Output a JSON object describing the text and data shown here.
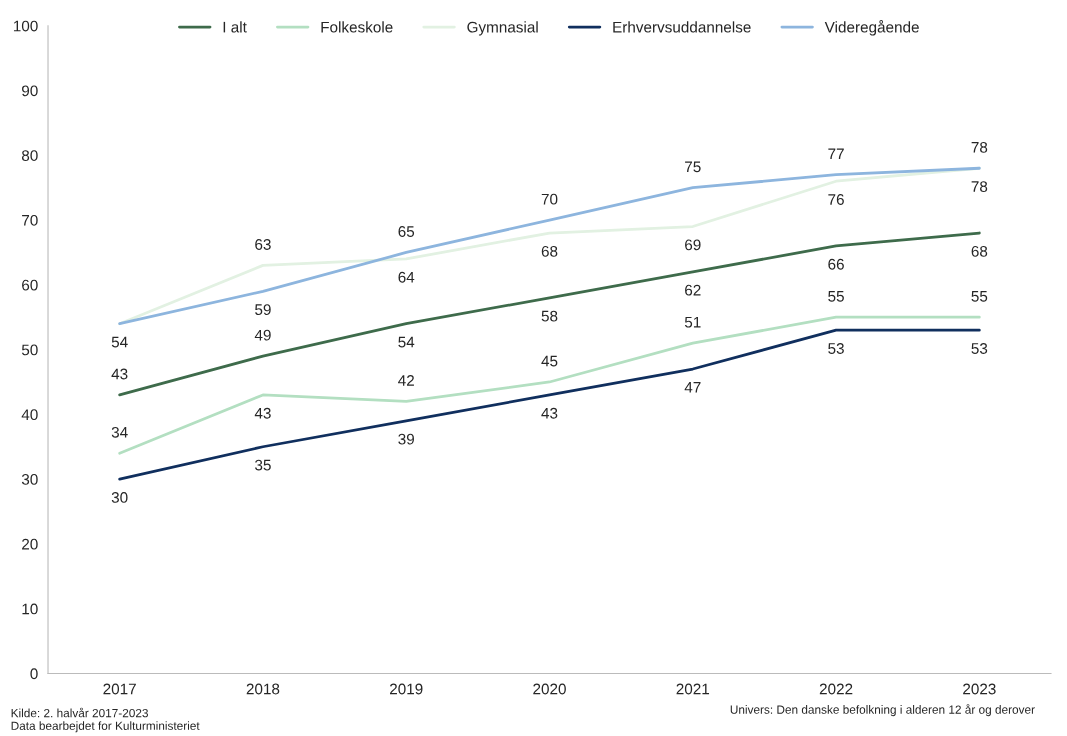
{
  "chart_data": {
    "type": "line",
    "categories": [
      "2017",
      "2018",
      "2019",
      "2020",
      "2021",
      "2022",
      "2023"
    ],
    "series": [
      {
        "name": "I alt",
        "color": "#3e6b4b",
        "values": [
          43,
          49,
          54,
          58,
          62,
          66,
          68
        ],
        "value_labels": [
          "43",
          "49",
          "54",
          "58",
          "62",
          "66",
          "68"
        ]
      },
      {
        "name": "Folkeskole",
        "color": "#b3dfc1",
        "values": [
          34,
          43,
          42,
          45,
          51,
          55,
          55
        ],
        "value_labels": [
          "34",
          "43",
          "42",
          "45",
          "51",
          "55",
          "55"
        ]
      },
      {
        "name": "Gymnasial",
        "color": "#e2f1e2",
        "values": [
          54,
          63,
          64,
          68,
          69,
          76,
          78
        ],
        "value_labels": [
          null,
          "63",
          "64",
          "68",
          "69",
          "76",
          "78"
        ]
      },
      {
        "name": "Erhvervsuddannelse",
        "color": "#102f5e",
        "values": [
          30,
          35,
          39,
          43,
          47,
          53,
          53
        ],
        "value_labels": [
          "30",
          "35",
          "39",
          "43",
          "47",
          "53",
          "53"
        ]
      },
      {
        "name": "Videregående",
        "color": "#8db5de",
        "values": [
          54,
          59,
          65,
          70,
          75,
          77,
          78
        ],
        "value_labels": [
          "54",
          "59",
          "65",
          "70",
          "75",
          "77",
          "78"
        ]
      }
    ],
    "ylim": [
      0,
      100
    ],
    "yticks": [
      0,
      10,
      20,
      30,
      40,
      50,
      60,
      70,
      80,
      90,
      100
    ],
    "grid": false,
    "legend": "top",
    "marker": "none",
    "line_style": "solid",
    "annotations": [
      "Kilde: 2. halvår 2017-2023\nData bearbejdet for Kulturministeriet",
      "Univers: Den danske befolkning i alderen 12 år og derover"
    ]
  }
}
